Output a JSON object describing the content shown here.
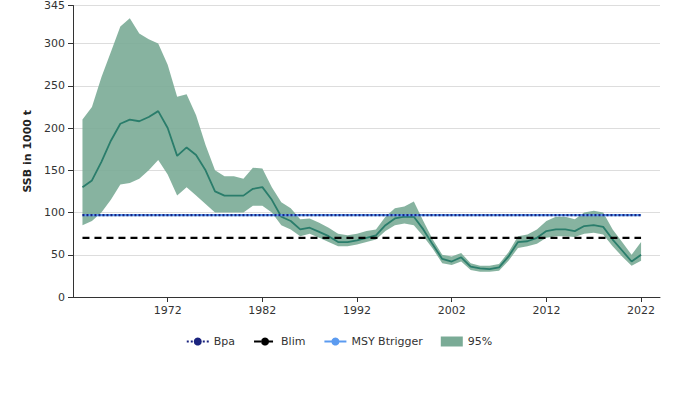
{
  "chart_data": {
    "type": "line",
    "y_label": "SSB in 1000 t",
    "x": [
      1963,
      1964,
      1965,
      1966,
      1967,
      1968,
      1969,
      1970,
      1971,
      1972,
      1973,
      1974,
      1975,
      1976,
      1977,
      1978,
      1979,
      1980,
      1981,
      1982,
      1983,
      1984,
      1985,
      1986,
      1987,
      1988,
      1989,
      1990,
      1991,
      1992,
      1993,
      1994,
      1995,
      1996,
      1997,
      1998,
      1999,
      2000,
      2001,
      2002,
      2003,
      2004,
      2005,
      2006,
      2007,
      2008,
      2009,
      2010,
      2011,
      2012,
      2013,
      2014,
      2015,
      2016,
      2017,
      2018,
      2019,
      2020,
      2021,
      2022
    ],
    "series": [
      {
        "color": "#2a7d6b",
        "values": [
          130,
          138,
          160,
          185,
          205,
          210,
          208,
          213,
          220,
          200,
          167,
          177,
          168,
          150,
          125,
          120,
          120,
          120,
          128,
          130,
          115,
          95,
          90,
          80,
          82,
          77,
          72,
          65,
          65,
          67,
          70,
          73,
          85,
          93,
          95,
          95,
          80,
          62,
          45,
          42,
          47,
          36,
          34,
          33,
          35,
          48,
          65,
          66,
          70,
          78,
          80,
          80,
          78,
          84,
          85,
          83,
          68,
          55,
          42,
          50
        ]
      }
    ],
    "band": {
      "name": "95%",
      "color": "#7aab96",
      "lower": [
        85,
        90,
        100,
        115,
        133,
        135,
        140,
        150,
        162,
        145,
        120,
        130,
        120,
        110,
        100,
        100,
        100,
        100,
        108,
        108,
        100,
        85,
        80,
        72,
        75,
        70,
        65,
        60,
        60,
        62,
        65,
        68,
        78,
        85,
        87,
        85,
        72,
        57,
        40,
        38,
        42,
        32,
        30,
        30,
        31,
        43,
        58,
        60,
        63,
        70,
        72,
        72,
        71,
        75,
        76,
        74,
        60,
        48,
        37,
        43
      ],
      "upper": [
        210,
        225,
        260,
        290,
        320,
        330,
        312,
        305,
        300,
        275,
        237,
        240,
        215,
        180,
        150,
        143,
        143,
        140,
        153,
        152,
        130,
        112,
        105,
        92,
        93,
        88,
        82,
        75,
        73,
        75,
        78,
        80,
        95,
        105,
        107,
        113,
        90,
        68,
        50,
        48,
        52,
        40,
        37,
        37,
        39,
        53,
        72,
        74,
        80,
        90,
        95,
        95,
        92,
        100,
        102,
        100,
        80,
        65,
        50,
        65
      ]
    },
    "reference_lines": [
      {
        "name": "MSY Btrigger",
        "value": 97,
        "color": "#5b9bf0",
        "line_style": "solid"
      },
      {
        "name": "Bpa",
        "value": 97,
        "color": "#1a237e",
        "line_style": "dotted"
      },
      {
        "name": "Blim",
        "value": 70,
        "color": "#000000",
        "line_style": "dashed"
      }
    ],
    "legend_order": [
      "Bpa",
      "Blim",
      "MSY Btrigger",
      "95%"
    ],
    "xlim": [
      1962,
      2024
    ],
    "xticks": [
      1972,
      1982,
      1992,
      2002,
      2012,
      2022
    ],
    "ylim": [
      0,
      345
    ],
    "yticks": [
      0,
      50,
      100,
      150,
      200,
      250,
      300
    ],
    "grid": true,
    "legend": "bottom"
  }
}
